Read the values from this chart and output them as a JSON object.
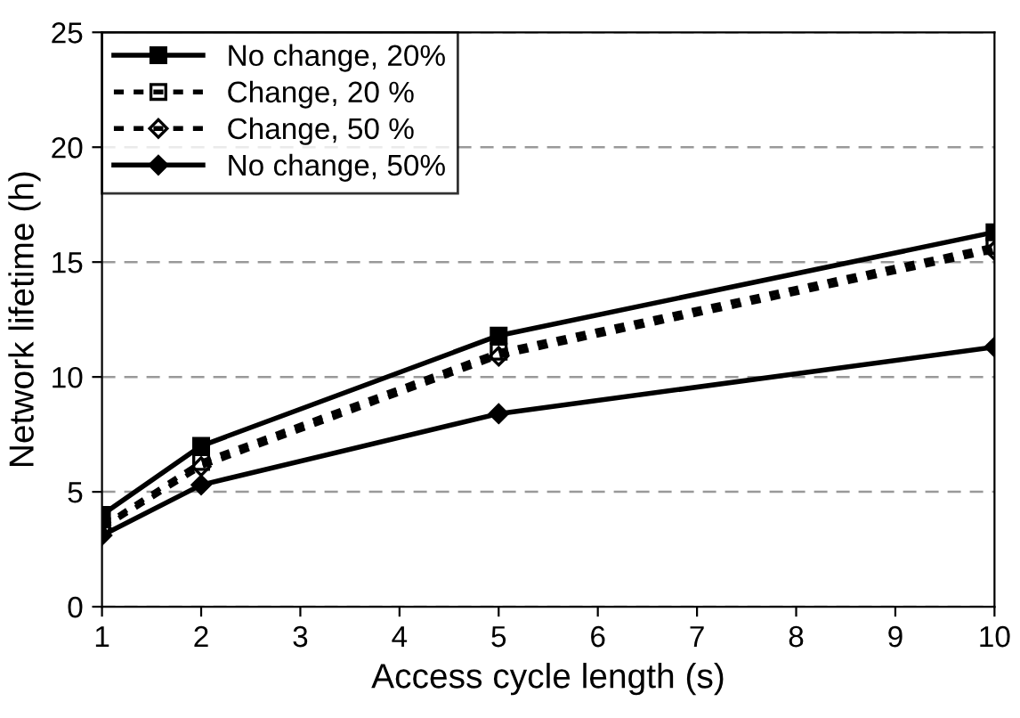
{
  "chart_data": {
    "type": "line",
    "xlabel": "Access cycle length (s)",
    "ylabel": "Network lifetime (h)",
    "x": [
      1,
      2,
      5,
      10
    ],
    "series": [
      {
        "name": "No change, 20%",
        "color": "#000000",
        "values": [
          4.0,
          7.0,
          11.8,
          16.3
        ],
        "marker": "square",
        "line_style": "solid"
      },
      {
        "name": "Change, 20 %",
        "color": "#000000",
        "values": [
          3.5,
          6.3,
          11.1,
          15.7
        ],
        "marker": "square",
        "line_style": "dotted"
      },
      {
        "name": "Change, 50 %",
        "color": "#000000",
        "values": [
          3.4,
          6.1,
          10.9,
          15.5
        ],
        "marker": "diamond",
        "line_style": "dotted"
      },
      {
        "name": "No change, 50%",
        "color": "#000000",
        "values": [
          3.1,
          5.3,
          8.4,
          11.3
        ],
        "marker": "diamond",
        "line_style": "solid"
      }
    ],
    "xlim": [
      1,
      10
    ],
    "xticks": [
      1,
      2,
      3,
      4,
      5,
      6,
      7,
      8,
      9,
      10
    ],
    "ylim": [
      0,
      25
    ],
    "yticks": [
      0,
      5,
      10,
      15,
      20,
      25
    ],
    "grid": "y",
    "legend": "top left"
  }
}
